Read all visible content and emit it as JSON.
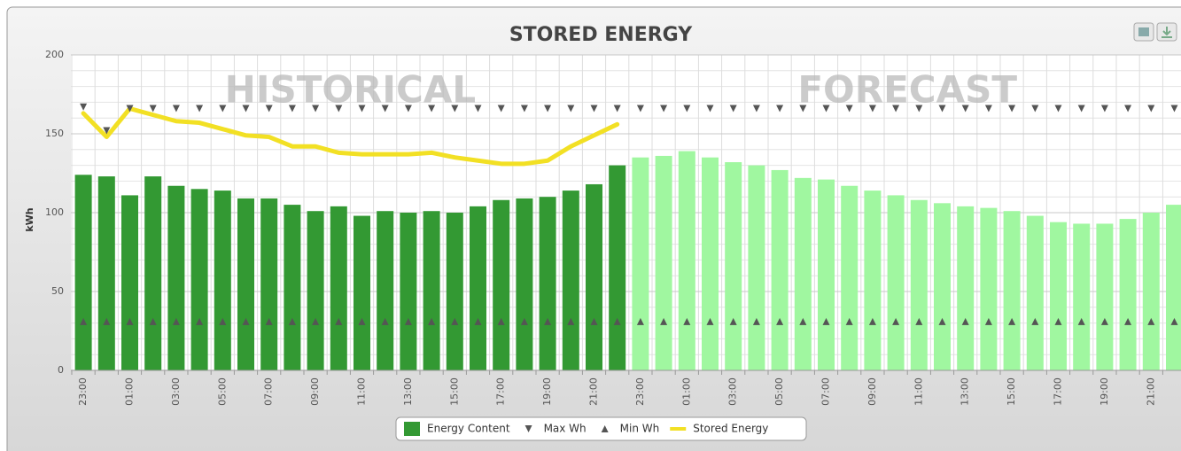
{
  "chart_data": {
    "type": "bar",
    "title": "STORED ENERGY",
    "y_label": "kWh",
    "categories": [
      "23:00",
      null,
      "01:00",
      null,
      "03:00",
      null,
      "05:00",
      null,
      "07:00",
      null,
      "09:00",
      null,
      "11:00",
      null,
      "13:00",
      null,
      "15:00",
      null,
      "17:00",
      null,
      "19:00",
      null,
      "21:00",
      null,
      "23:00",
      null,
      "01:00",
      null,
      "03:00",
      null,
      "05:00",
      null,
      "07:00",
      null,
      "09:00",
      null,
      "11:00",
      null,
      "13:00",
      null,
      "15:00",
      null,
      "17:00",
      null,
      "19:00",
      null,
      "21:00",
      null
    ],
    "regions": [
      {
        "label": "HISTORICAL",
        "start": 0,
        "end": 23,
        "color": "#339933"
      },
      {
        "label": "FORECAST",
        "start": 24,
        "end": 47,
        "color": "#a0f7a0"
      }
    ],
    "series": [
      {
        "name": "Energy Content",
        "type": "bar",
        "color": "#339933",
        "values": [
          124,
          123,
          111,
          123,
          117,
          115,
          114,
          109,
          109,
          105,
          101,
          104,
          98,
          101,
          100,
          101,
          100,
          104,
          108,
          109,
          110,
          114,
          118,
          130,
          135,
          136,
          139,
          135,
          132,
          130,
          127,
          122,
          121,
          117,
          114,
          111,
          108,
          106,
          104,
          103,
          101,
          98,
          94,
          93,
          93,
          96,
          100,
          105
        ]
      },
      {
        "name": "Max Wh",
        "type": "marker-down",
        "color": "#555555",
        "values": [
          167,
          152,
          166,
          166,
          166,
          166,
          166,
          166,
          166,
          166,
          166,
          166,
          166,
          166,
          166,
          166,
          166,
          166,
          166,
          166,
          166,
          166,
          166,
          166,
          166,
          166,
          166,
          166,
          166,
          166,
          166,
          166,
          166,
          166,
          166,
          166,
          166,
          166,
          166,
          166,
          166,
          166,
          166,
          166,
          166,
          166,
          166,
          166
        ]
      },
      {
        "name": "Min Wh",
        "type": "marker-up",
        "color": "#555555",
        "values": [
          31,
          31,
          31,
          31,
          31,
          31,
          31,
          31,
          31,
          31,
          31,
          31,
          31,
          31,
          31,
          31,
          31,
          31,
          31,
          31,
          31,
          31,
          31,
          31,
          31,
          31,
          31,
          31,
          31,
          31,
          31,
          31,
          31,
          31,
          31,
          31,
          31,
          31,
          31,
          31,
          31,
          31,
          31,
          31,
          31,
          31,
          31,
          31
        ]
      },
      {
        "name": "Stored Energy",
        "type": "line",
        "color": "#f2e024",
        "values": [
          163,
          148,
          166,
          162,
          158,
          157,
          153,
          149,
          148,
          142,
          142,
          138,
          137,
          137,
          137,
          138,
          135,
          133,
          131,
          131,
          133,
          142,
          149,
          156,
          null,
          null,
          null,
          null,
          null,
          null,
          null,
          null,
          null,
          null,
          null,
          null,
          null,
          null,
          null,
          null,
          null,
          null,
          null,
          null,
          null,
          null,
          null,
          null
        ]
      }
    ],
    "ylim": [
      0,
      200
    ],
    "yticks": [
      0,
      50,
      100,
      150,
      200
    ],
    "grid": true
  }
}
